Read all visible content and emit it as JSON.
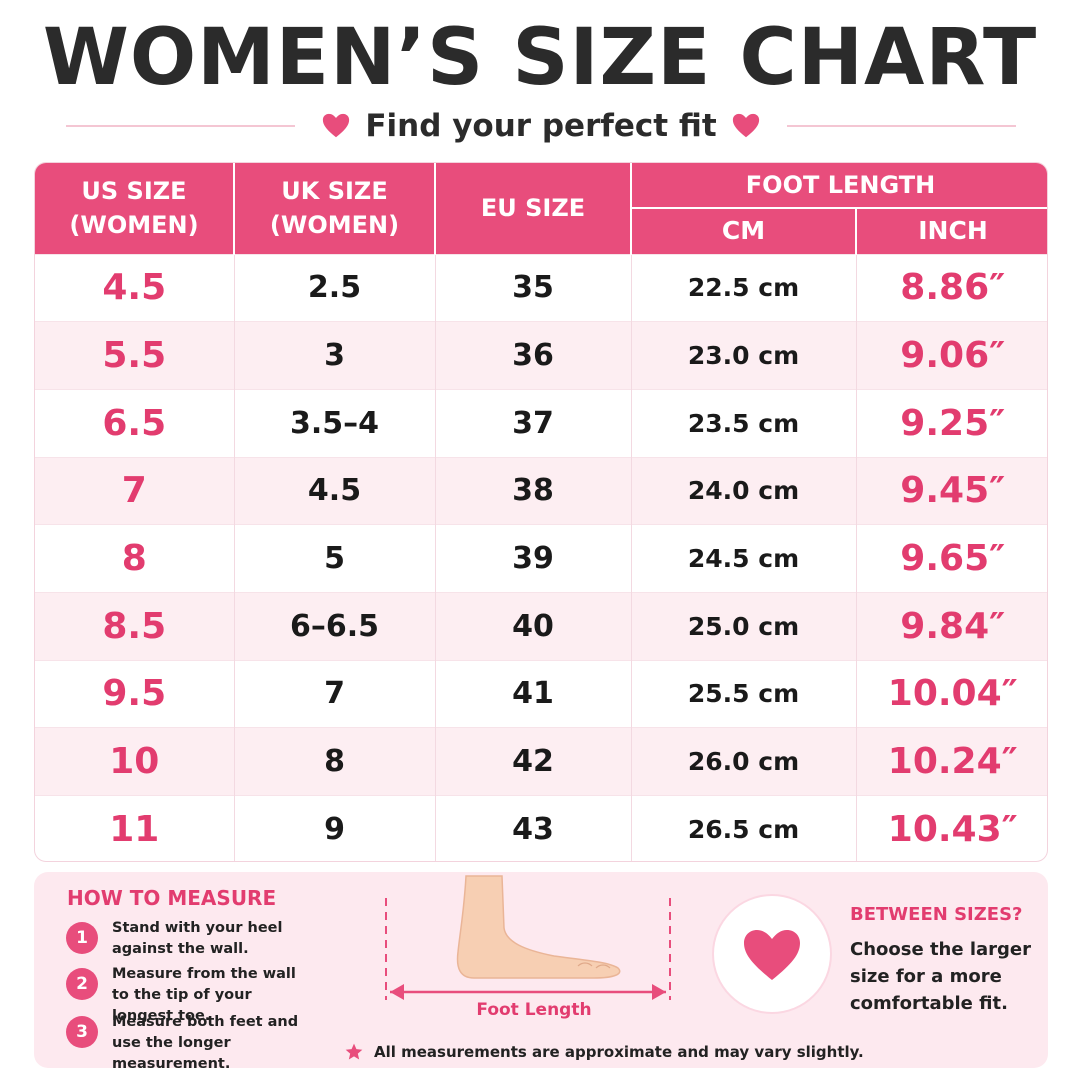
{
  "title": "WOMEN’S SIZE CHART",
  "subtitle": "Find your perfect fit",
  "colors": {
    "accent": "#e84d7c",
    "accent_text": "#e23c6f",
    "row_alt": "#fdeef2",
    "panel": "#fde9ef"
  },
  "table": {
    "headers": {
      "us": "US SIZE (WOMEN)",
      "uk": "UK SIZE (WOMEN)",
      "eu": "EU SIZE",
      "foot_length": "FOOT LENGTH",
      "cm": "CM",
      "inch": "INCH"
    },
    "rows": [
      {
        "us": "4.5",
        "uk": "2.5",
        "eu": "35",
        "cm": "22.5 cm",
        "inch": "8.86″"
      },
      {
        "us": "5.5",
        "uk": "3",
        "eu": "36",
        "cm": "23.0 cm",
        "inch": "9.06″"
      },
      {
        "us": "6.5",
        "uk": "3.5–4",
        "eu": "37",
        "cm": "23.5 cm",
        "inch": "9.25″"
      },
      {
        "us": "7",
        "uk": "4.5",
        "eu": "38",
        "cm": "24.0 cm",
        "inch": "9.45″"
      },
      {
        "us": "8",
        "uk": "5",
        "eu": "39",
        "cm": "24.5 cm",
        "inch": "9.65″"
      },
      {
        "us": "8.5",
        "uk": "6–6.5",
        "eu": "40",
        "cm": "25.0 cm",
        "inch": "9.84″"
      },
      {
        "us": "9.5",
        "uk": "7",
        "eu": "41",
        "cm": "25.5 cm",
        "inch": "10.04″"
      },
      {
        "us": "10",
        "uk": "8",
        "eu": "42",
        "cm": "26.0 cm",
        "inch": "10.24″"
      },
      {
        "us": "11",
        "uk": "9",
        "eu": "43",
        "cm": "26.5 cm",
        "inch": "10.43″"
      }
    ]
  },
  "how_to_measure": {
    "title": "HOW TO MEASURE",
    "steps": [
      {
        "num": "1",
        "text": "Stand with your heel against the wall."
      },
      {
        "num": "2",
        "text": "Measure from the wall to the tip of your longest toe."
      },
      {
        "num": "3",
        "text": "Measure both feet and use the longer measurement."
      }
    ],
    "foot_label": "Foot Length"
  },
  "between_sizes": {
    "title": "BETWEEN SIZES?",
    "text": "Choose the larger size for a more comfortable fit."
  },
  "note": "All measurements are approximate and may vary slightly."
}
